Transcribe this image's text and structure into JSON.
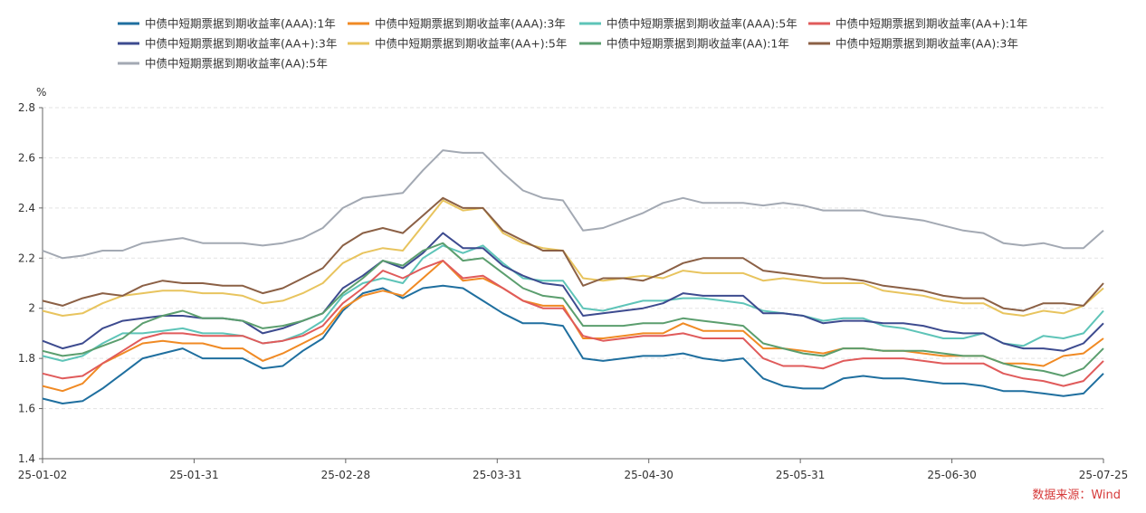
{
  "chart_data": {
    "type": "line",
    "title": "",
    "xlabel": "",
    "ylabel": "%",
    "ylim": [
      1.4,
      2.8
    ],
    "yticks": [
      1.4,
      1.6,
      1.8,
      2,
      2.2,
      2.4,
      2.6,
      2.8
    ],
    "ytick_labels": [
      "1.4",
      "1.6",
      "1.8",
      "2",
      "2.2",
      "2.4",
      "2.6",
      "2.8"
    ],
    "xtick_labels": [
      "25-01-02",
      "25-01-31",
      "25-02-28",
      "25-03-31",
      "25-04-30",
      "25-05-31",
      "25-06-30",
      "25-07-25"
    ],
    "grid": "horizontal-dashed",
    "legend_position": "top",
    "source": "数据来源：Wind",
    "series": [
      {
        "name": "中债中短期票据到期收益率(AAA):1年",
        "color": "#1f6f9f",
        "values": [
          1.64,
          1.62,
          1.63,
          1.68,
          1.74,
          1.8,
          1.82,
          1.84,
          1.8,
          1.8,
          1.8,
          1.76,
          1.77,
          1.83,
          1.88,
          1.99,
          2.06,
          2.08,
          2.04,
          2.08,
          2.09,
          2.08,
          2.03,
          1.98,
          1.94,
          1.94,
          1.93,
          1.8,
          1.79,
          1.8,
          1.81,
          1.81,
          1.82,
          1.8,
          1.79,
          1.8,
          1.72,
          1.69,
          1.68,
          1.68,
          1.72,
          1.73,
          1.72,
          1.72,
          1.71,
          1.7,
          1.7,
          1.69,
          1.67,
          1.67,
          1.66,
          1.65,
          1.66,
          1.74
        ]
      },
      {
        "name": "中债中短期票据到期收益率(AAA):3年",
        "color": "#f08a24",
        "values": [
          1.69,
          1.67,
          1.7,
          1.78,
          1.82,
          1.86,
          1.87,
          1.86,
          1.86,
          1.84,
          1.84,
          1.79,
          1.82,
          1.86,
          1.9,
          2.0,
          2.05,
          2.07,
          2.05,
          2.12,
          2.19,
          2.11,
          2.12,
          2.08,
          2.03,
          2.01,
          2.01,
          1.88,
          1.88,
          1.89,
          1.9,
          1.9,
          1.94,
          1.91,
          1.91,
          1.91,
          1.84,
          1.84,
          1.83,
          1.82,
          1.84,
          1.84,
          1.83,
          1.83,
          1.82,
          1.81,
          1.81,
          1.81,
          1.78,
          1.78,
          1.77,
          1.81,
          1.82,
          1.88
        ]
      },
      {
        "name": "中债中短期票据到期收益率(AAA):5年",
        "color": "#5ec4b8",
        "values": [
          1.81,
          1.79,
          1.81,
          1.86,
          1.9,
          1.9,
          1.91,
          1.92,
          1.9,
          1.9,
          1.89,
          1.86,
          1.87,
          1.9,
          1.95,
          2.05,
          2.1,
          2.12,
          2.1,
          2.2,
          2.25,
          2.22,
          2.25,
          2.18,
          2.12,
          2.11,
          2.11,
          2.0,
          1.99,
          2.01,
          2.03,
          2.03,
          2.04,
          2.04,
          2.03,
          2.02,
          1.99,
          1.98,
          1.97,
          1.95,
          1.96,
          1.96,
          1.93,
          1.92,
          1.9,
          1.88,
          1.88,
          1.9,
          1.86,
          1.85,
          1.89,
          1.88,
          1.9,
          1.99
        ]
      },
      {
        "name": "中债中短期票据到期收益率(AA+):1年",
        "color": "#e05b5b",
        "values": [
          1.74,
          1.72,
          1.73,
          1.78,
          1.83,
          1.88,
          1.9,
          1.9,
          1.89,
          1.89,
          1.89,
          1.86,
          1.87,
          1.89,
          1.93,
          2.02,
          2.08,
          2.15,
          2.12,
          2.16,
          2.19,
          2.12,
          2.13,
          2.08,
          2.03,
          2.0,
          2.0,
          1.89,
          1.87,
          1.88,
          1.89,
          1.89,
          1.9,
          1.88,
          1.88,
          1.88,
          1.8,
          1.77,
          1.77,
          1.76,
          1.79,
          1.8,
          1.8,
          1.8,
          1.79,
          1.78,
          1.78,
          1.78,
          1.74,
          1.72,
          1.71,
          1.69,
          1.71,
          1.79
        ]
      },
      {
        "name": "中债中短期票据到期收益率(AA+):3年",
        "color": "#3d4b8f",
        "values": [
          1.87,
          1.84,
          1.86,
          1.92,
          1.95,
          1.96,
          1.97,
          1.97,
          1.96,
          1.96,
          1.95,
          1.9,
          1.92,
          1.95,
          1.98,
          2.08,
          2.13,
          2.19,
          2.16,
          2.22,
          2.3,
          2.24,
          2.24,
          2.17,
          2.13,
          2.1,
          2.09,
          1.97,
          1.98,
          1.99,
          2.0,
          2.02,
          2.06,
          2.05,
          2.05,
          2.05,
          1.98,
          1.98,
          1.97,
          1.94,
          1.95,
          1.95,
          1.94,
          1.94,
          1.93,
          1.91,
          1.9,
          1.9,
          1.86,
          1.84,
          1.84,
          1.83,
          1.86,
          1.94
        ]
      },
      {
        "name": "中债中短期票据到期收益率(AA+):5年",
        "color": "#e8c45e",
        "values": [
          1.99,
          1.97,
          1.98,
          2.02,
          2.05,
          2.06,
          2.07,
          2.07,
          2.06,
          2.06,
          2.05,
          2.02,
          2.03,
          2.06,
          2.1,
          2.18,
          2.22,
          2.24,
          2.23,
          2.33,
          2.43,
          2.39,
          2.4,
          2.3,
          2.26,
          2.24,
          2.23,
          2.12,
          2.11,
          2.12,
          2.13,
          2.12,
          2.15,
          2.14,
          2.14,
          2.14,
          2.11,
          2.12,
          2.11,
          2.1,
          2.1,
          2.1,
          2.07,
          2.06,
          2.05,
          2.03,
          2.02,
          2.02,
          1.98,
          1.97,
          1.99,
          1.98,
          2.01,
          2.08
        ]
      },
      {
        "name": "中债中短期票据到期收益率(AA):1年",
        "color": "#5b9e6e",
        "values": [
          1.83,
          1.81,
          1.82,
          1.85,
          1.88,
          1.94,
          1.97,
          1.99,
          1.96,
          1.96,
          1.95,
          1.92,
          1.93,
          1.95,
          1.98,
          2.06,
          2.12,
          2.19,
          2.17,
          2.23,
          2.26,
          2.19,
          2.2,
          2.14,
          2.08,
          2.05,
          2.04,
          1.93,
          1.93,
          1.93,
          1.94,
          1.94,
          1.96,
          1.95,
          1.94,
          1.93,
          1.86,
          1.84,
          1.82,
          1.81,
          1.84,
          1.84,
          1.83,
          1.83,
          1.83,
          1.82,
          1.81,
          1.81,
          1.78,
          1.76,
          1.75,
          1.73,
          1.76,
          1.84
        ]
      },
      {
        "name": "中债中短期票据到期收益率(AA):3年",
        "color": "#8b6045",
        "values": [
          2.03,
          2.01,
          2.04,
          2.06,
          2.05,
          2.09,
          2.11,
          2.1,
          2.1,
          2.09,
          2.09,
          2.06,
          2.08,
          2.12,
          2.16,
          2.25,
          2.3,
          2.32,
          2.3,
          2.37,
          2.44,
          2.4,
          2.4,
          2.31,
          2.27,
          2.23,
          2.23,
          2.09,
          2.12,
          2.12,
          2.11,
          2.14,
          2.18,
          2.2,
          2.2,
          2.2,
          2.15,
          2.14,
          2.13,
          2.12,
          2.12,
          2.11,
          2.09,
          2.08,
          2.07,
          2.05,
          2.04,
          2.04,
          2.0,
          1.99,
          2.02,
          2.02,
          2.01,
          2.1
        ]
      },
      {
        "name": "中债中短期票据到期收益率(AA):5年",
        "color": "#a3a9b3",
        "values": [
          2.23,
          2.2,
          2.21,
          2.23,
          2.23,
          2.26,
          2.27,
          2.28,
          2.26,
          2.26,
          2.26,
          2.25,
          2.26,
          2.28,
          2.32,
          2.4,
          2.44,
          2.45,
          2.46,
          2.55,
          2.63,
          2.62,
          2.62,
          2.54,
          2.47,
          2.44,
          2.43,
          2.31,
          2.32,
          2.35,
          2.38,
          2.42,
          2.44,
          2.42,
          2.42,
          2.42,
          2.41,
          2.42,
          2.41,
          2.39,
          2.39,
          2.39,
          2.37,
          2.36,
          2.35,
          2.33,
          2.31,
          2.3,
          2.26,
          2.25,
          2.26,
          2.24,
          2.24,
          2.31
        ]
      }
    ]
  }
}
